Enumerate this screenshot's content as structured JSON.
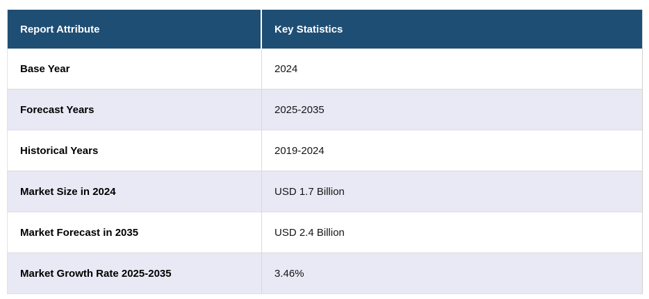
{
  "table": {
    "columns": [
      {
        "label": "Report Attribute"
      },
      {
        "label": "Key Statistics"
      }
    ],
    "rows": [
      {
        "attribute": "Base Year",
        "value": "2024"
      },
      {
        "attribute": "Forecast Years",
        "value": "2025-2035"
      },
      {
        "attribute": "Historical Years",
        "value": "2019-2024"
      },
      {
        "attribute": "Market Size in 2024",
        "value": "USD 1.7 Billion"
      },
      {
        "attribute": "Market Forecast in 2035",
        "value": "USD 2.4 Billion"
      },
      {
        "attribute": "Market Growth Rate 2025-2035",
        "value": "3.46%"
      }
    ],
    "colors": {
      "header_background": "#1f4e74",
      "header_text": "#ffffff",
      "row_background": "#ffffff",
      "row_alt_background": "#e8e9f4",
      "border": "#d9d9d9",
      "body_text": "#141414"
    }
  }
}
